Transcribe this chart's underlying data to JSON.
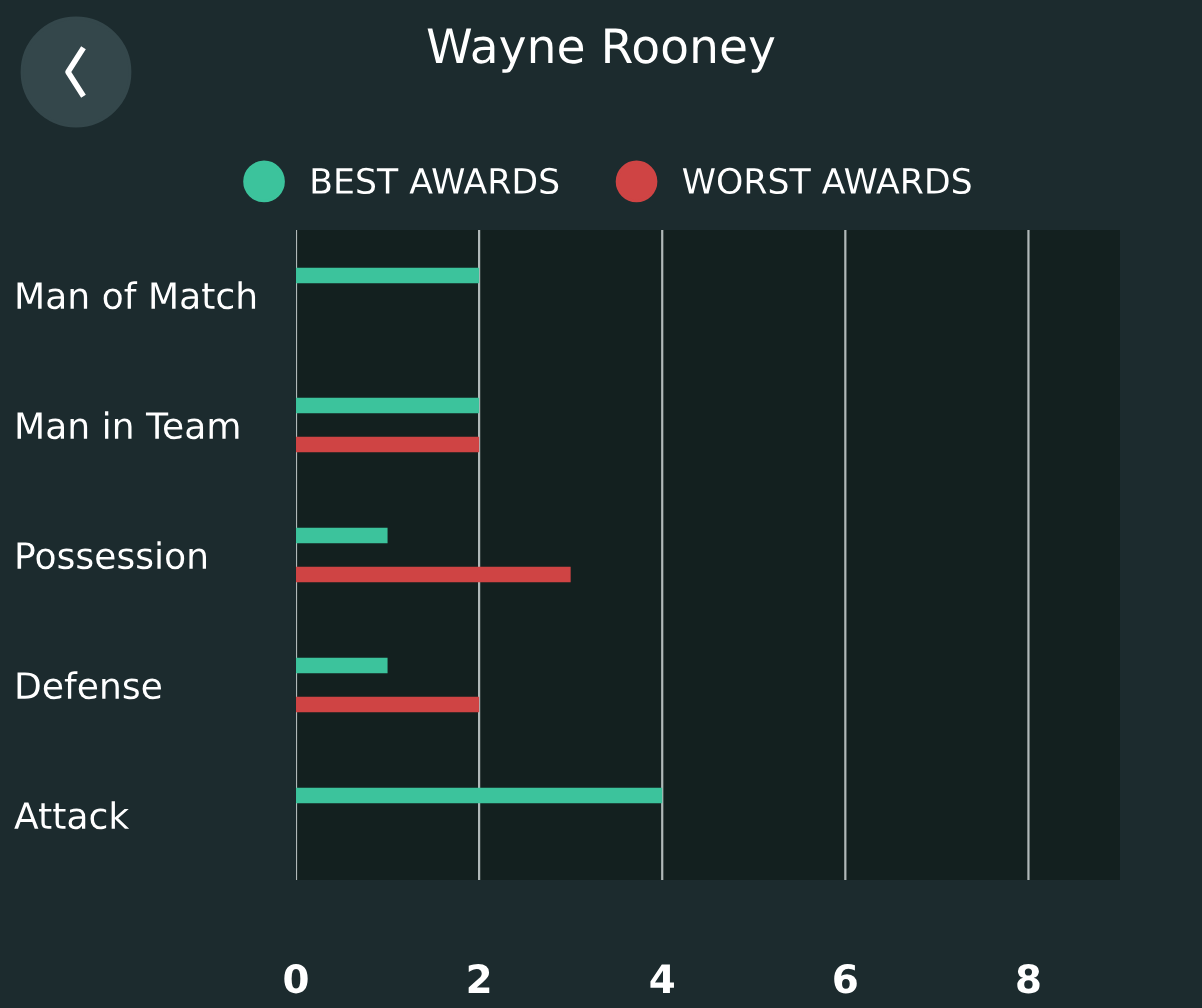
{
  "chart_data": {
    "type": "bar",
    "orientation": "horizontal",
    "title": "Wayne Rooney",
    "categories": [
      "Man of Match",
      "Man in Team",
      "Possession",
      "Defense",
      "Attack"
    ],
    "series": [
      {
        "name": "BEST AWARDS",
        "color": "#3cc39c",
        "values": [
          2,
          2,
          1,
          1,
          4
        ]
      },
      {
        "name": "WORST AWARDS",
        "color": "#cf4444",
        "values": [
          null,
          2,
          3,
          2,
          null
        ]
      }
    ],
    "xlim": [
      0,
      9
    ],
    "xticks": [
      0,
      2,
      4,
      6,
      8
    ],
    "grid": "x",
    "legend": "top"
  }
}
